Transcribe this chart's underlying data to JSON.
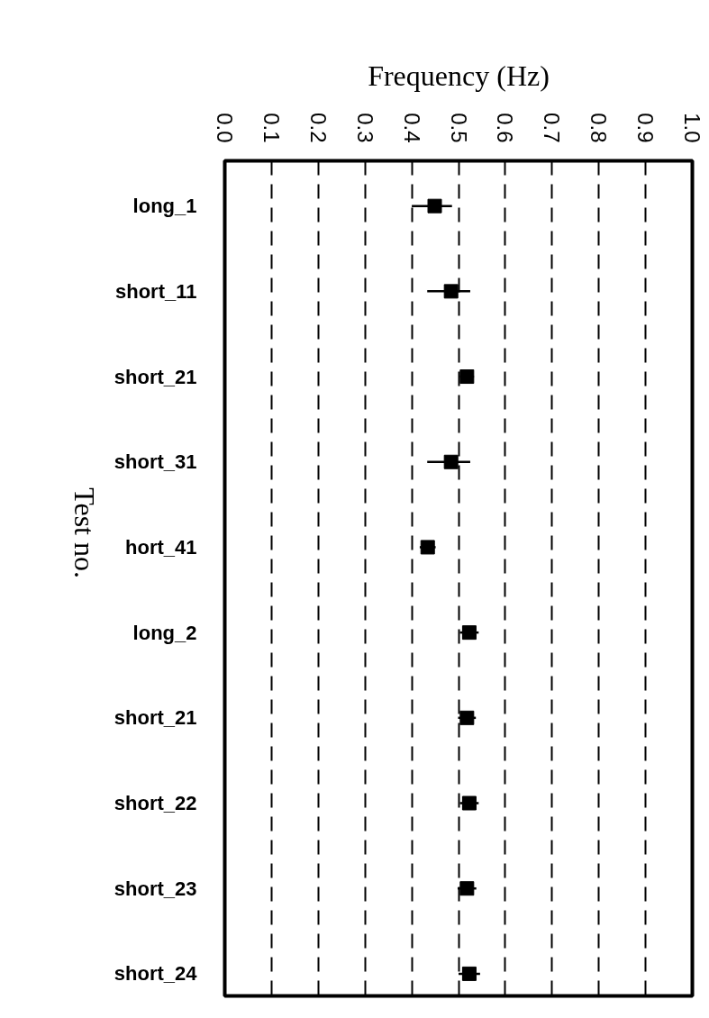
{
  "chart_data": {
    "type": "scatter",
    "orientation": "horizontal",
    "xlabel": "Frequency (Hz)",
    "ylabel": "Test no.",
    "categories": [
      "long_1",
      "short_11",
      "short_21",
      "short_31",
      "hort_41",
      "long_2",
      "short_21",
      "short_22",
      "short_23",
      "short_24"
    ],
    "values": [
      0.449,
      0.484,
      0.518,
      0.484,
      0.434,
      0.523,
      0.518,
      0.523,
      0.518,
      0.523
    ],
    "errors": [
      [
        0.4,
        0.486
      ],
      [
        0.433,
        0.525
      ],
      0.015,
      [
        0.433,
        0.525
      ],
      0.017,
      0.02,
      0.019,
      0.02,
      0.02,
      0.023
    ],
    "color": "#000000",
    "marker": "square",
    "xlim": [
      0.0,
      1.0
    ],
    "xticks": [
      {
        "value": 0.0,
        "label": "0.0"
      },
      0.1,
      0.2,
      0.3,
      0.4,
      0.5,
      0.6,
      0.7,
      0.8,
      0.9,
      {
        "value": 1.0,
        "label": "1.0"
      }
    ],
    "grid": "x"
  }
}
